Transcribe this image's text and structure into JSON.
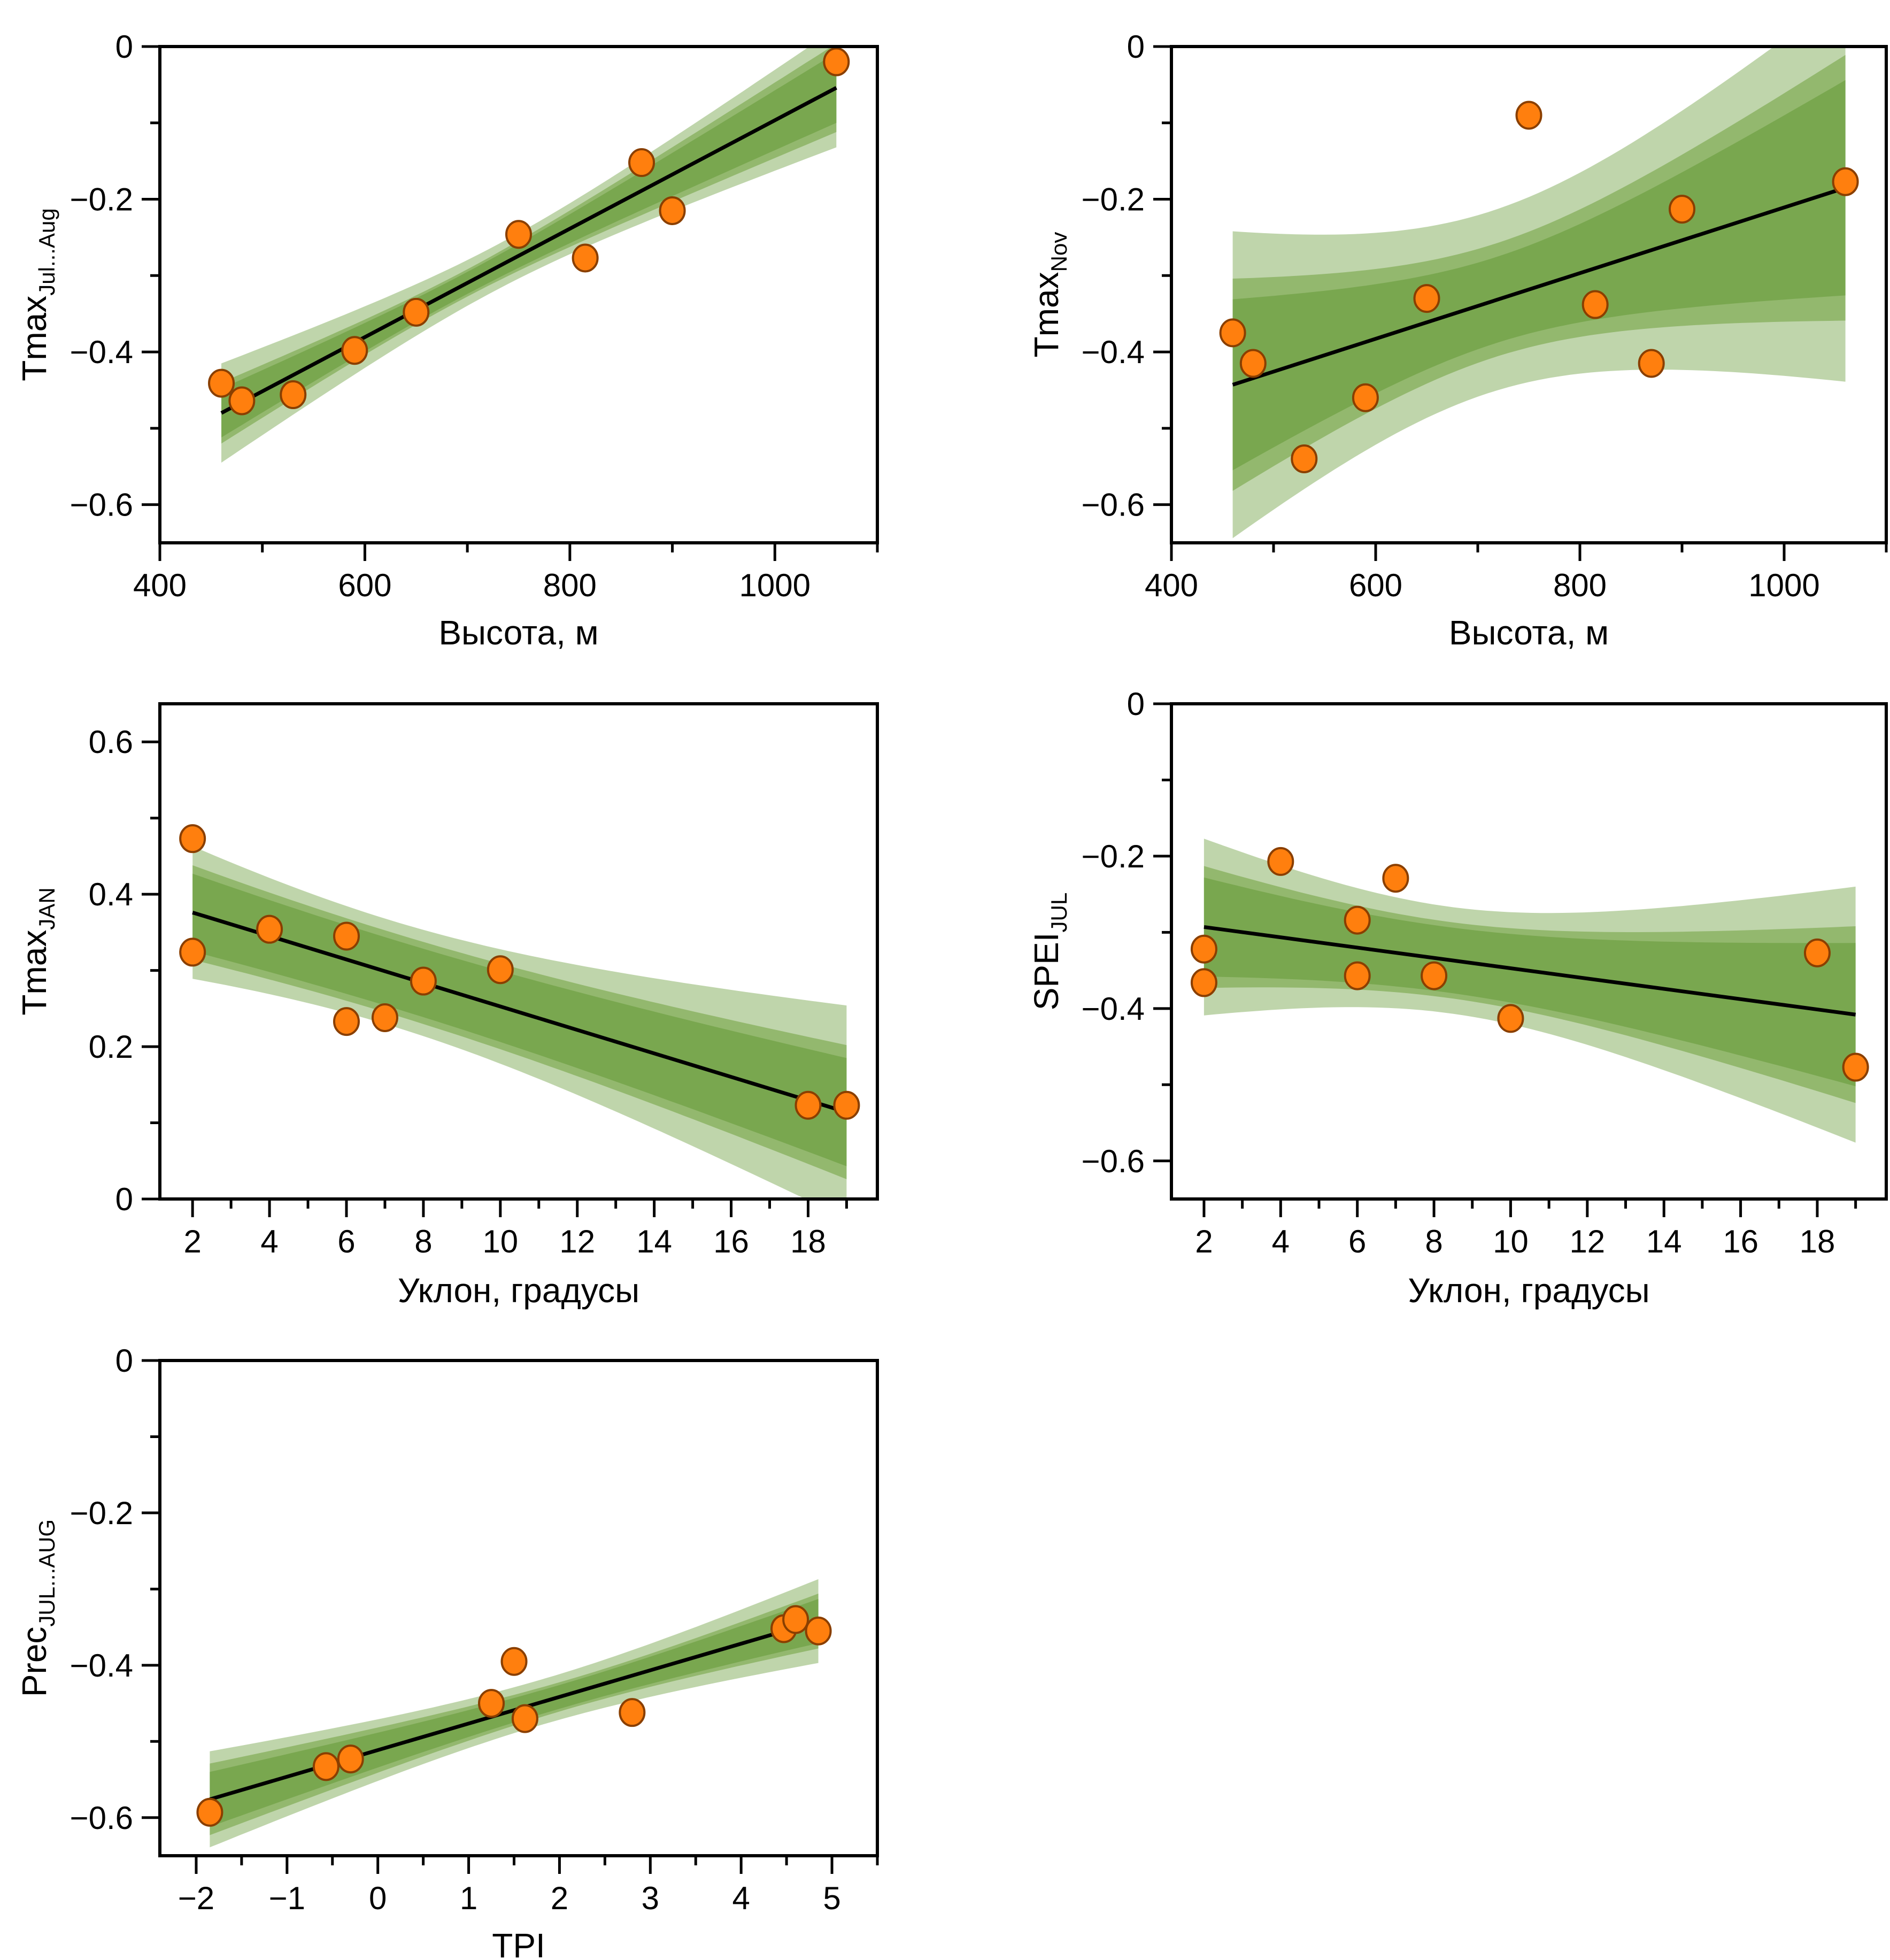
{
  "colors": {
    "band_outer": "#bfd5ab",
    "band_mid": "#93b86e",
    "band_inner": "#79a74f",
    "point_fill": "#ff7f0e",
    "point_edge": "#8a3f00",
    "line": "#000000"
  },
  "chart_data": [
    {
      "id": "p1",
      "type": "scatter",
      "title": "",
      "ylabel_main": "Tmax",
      "ylabel_sub": "Jul...Aug",
      "xlabel": "Высота, м",
      "xlim": [
        400,
        1100
      ],
      "ylim": [
        -0.65,
        0
      ],
      "xticks_major": [
        400,
        600,
        800,
        1000
      ],
      "xticks_minor": [
        500,
        700,
        900,
        1100
      ],
      "xtick_labels": [
        "400",
        "600",
        "800",
        "1000"
      ],
      "yticks_major": [
        0,
        -0.2,
        -0.4,
        -0.6
      ],
      "yticks_minor": [
        -0.1,
        -0.3,
        -0.5
      ],
      "ytick_labels": [
        "0",
        "−0.2",
        "−0.4",
        "−0.6"
      ],
      "points": {
        "x": [
          460,
          480,
          530,
          590,
          650,
          750,
          815,
          870,
          900,
          1060
        ],
        "y": [
          -0.441,
          -0.464,
          -0.456,
          -0.398,
          -0.348,
          -0.246,
          -0.277,
          -0.152,
          -0.215,
          -0.02
        ]
      },
      "fit": {
        "x": [
          460,
          1060
        ],
        "y": [
          -0.48,
          -0.054
        ]
      },
      "band_half_widths": {
        "x": [
          460,
          755,
          1060
        ],
        "outer": [
          0.065,
          0.03,
          0.078
        ],
        "mid": [
          0.04,
          0.02,
          0.058
        ],
        "inner": [
          0.032,
          0.016,
          0.046
        ]
      },
      "grid": false
    },
    {
      "id": "p2",
      "type": "scatter",
      "title": "",
      "ylabel_main": "Tmax",
      "ylabel_sub": "Nov",
      "xlabel": "Высота, м",
      "xlim": [
        400,
        1100
      ],
      "ylim": [
        -0.65,
        0
      ],
      "xticks_major": [
        400,
        600,
        800,
        1000
      ],
      "xticks_minor": [
        500,
        700,
        900,
        1100
      ],
      "xtick_labels": [
        "400",
        "600",
        "800",
        "1000"
      ],
      "yticks_major": [
        0,
        -0.2,
        -0.4,
        -0.6
      ],
      "yticks_minor": [
        -0.1,
        -0.3,
        -0.5
      ],
      "ytick_labels": [
        "0",
        "−0.2",
        "−0.4",
        "−0.6"
      ],
      "points": {
        "x": [
          460,
          480,
          530,
          590,
          650,
          750,
          815,
          870,
          900,
          1060
        ],
        "y": [
          -0.375,
          -0.415,
          -0.54,
          -0.46,
          -0.33,
          -0.09,
          -0.338,
          -0.415,
          -0.213,
          -0.177
        ]
      },
      "fit": {
        "x": [
          460,
          1060
        ],
        "y": [
          -0.443,
          -0.185
        ]
      },
      "band_half_widths": {
        "x": [
          460,
          740,
          1060
        ],
        "outer": [
          0.201,
          0.12,
          0.254
        ],
        "mid": [
          0.139,
          0.075,
          0.174
        ],
        "inner": [
          0.112,
          0.057,
          0.141
        ]
      },
      "grid": false
    },
    {
      "id": "p3",
      "type": "scatter",
      "title": "",
      "ylabel_main": "Tmax",
      "ylabel_sub": "JAN",
      "xlabel": "Уклон, градусы",
      "xlim": [
        1.15,
        19.8
      ],
      "ylim": [
        0,
        0.65
      ],
      "xticks_major": [
        2,
        4,
        6,
        8,
        10,
        12,
        14,
        16,
        18
      ],
      "xticks_minor": [
        3,
        5,
        7,
        9,
        11,
        13,
        15,
        17,
        19
      ],
      "xtick_labels": [
        "2",
        "4",
        "6",
        "8",
        "10",
        "12",
        "14",
        "16",
        "18"
      ],
      "yticks_major": [
        0,
        0.2,
        0.4,
        0.6
      ],
      "yticks_minor": [
        0.1,
        0.3,
        0.5
      ],
      "ytick_labels": [
        "0",
        "0.2",
        "0.4",
        "0.6"
      ],
      "points": {
        "x": [
          2,
          2,
          4,
          6,
          6,
          7,
          8,
          10,
          18,
          19
        ],
        "y": [
          0.473,
          0.324,
          0.354,
          0.345,
          0.233,
          0.238,
          0.286,
          0.301,
          0.123,
          0.123
        ]
      },
      "fit": {
        "x": [
          2,
          19
        ],
        "y": [
          0.376,
          0.114
        ]
      },
      "band_half_widths": {
        "x": [
          2,
          8.2,
          19
        ],
        "outer": [
          0.087,
          0.07,
          0.14
        ],
        "mid": [
          0.062,
          0.054,
          0.088
        ],
        "inner": [
          0.051,
          0.045,
          0.071
        ]
      },
      "grid": false
    },
    {
      "id": "p4",
      "type": "scatter",
      "title": "",
      "ylabel_main": "SPEI",
      "ylabel_sub": "JUL",
      "xlabel": "Уклон, градусы",
      "xlim": [
        1.15,
        19.8
      ],
      "ylim": [
        -0.65,
        0
      ],
      "xticks_major": [
        2,
        4,
        6,
        8,
        10,
        12,
        14,
        16,
        18
      ],
      "xticks_minor": [
        3,
        5,
        7,
        9,
        11,
        13,
        15,
        17,
        19
      ],
      "xtick_labels": [
        "2",
        "4",
        "6",
        "8",
        "10",
        "12",
        "14",
        "16",
        "18"
      ],
      "yticks_major": [
        0,
        -0.2,
        -0.4,
        -0.6
      ],
      "yticks_minor": [
        -0.1,
        -0.3,
        -0.5
      ],
      "ytick_labels": [
        "0",
        "−0.2",
        "−0.4",
        "−0.6"
      ],
      "points": {
        "x": [
          2,
          2,
          4,
          6,
          6,
          7,
          8,
          10,
          18,
          19
        ],
        "y": [
          -0.322,
          -0.366,
          -0.207,
          -0.284,
          -0.357,
          -0.229,
          -0.357,
          -0.413,
          -0.327,
          -0.477
        ]
      },
      "fit": {
        "x": [
          2,
          19
        ],
        "y": [
          -0.293,
          -0.408
        ]
      },
      "band_half_widths": {
        "x": [
          2,
          8.2,
          19
        ],
        "outer": [
          0.116,
          0.07,
          0.168
        ],
        "mid": [
          0.08,
          0.05,
          0.116
        ],
        "inner": [
          0.065,
          0.043,
          0.094
        ]
      },
      "grid": false
    },
    {
      "id": "p5",
      "type": "scatter",
      "title": "",
      "ylabel_main": "Prec",
      "ylabel_sub": "JUL...AUG",
      "xlabel": "TPI",
      "xlim": [
        -2.4,
        5.5
      ],
      "ylim": [
        -0.65,
        0
      ],
      "xticks_major": [
        -2,
        -1,
        0,
        1,
        2,
        3,
        4,
        5
      ],
      "xticks_minor": [
        -2.5,
        -1.5,
        -0.5,
        0.5,
        1.5,
        2.5,
        3.5,
        4.5,
        5.5
      ],
      "xtick_labels": [
        "−2",
        "−1",
        "0",
        "1",
        "2",
        "3",
        "4",
        "5"
      ],
      "yticks_major": [
        0,
        -0.2,
        -0.4,
        -0.6
      ],
      "yticks_minor": [
        -0.1,
        -0.3,
        -0.5
      ],
      "ytick_labels": [
        "0",
        "−0.2",
        "−0.4",
        "−0.6"
      ],
      "points": {
        "x": [
          -1.85,
          -0.57,
          -0.3,
          1.25,
          1.5,
          1.62,
          2.8,
          4.47,
          4.6,
          4.85
        ],
        "y": [
          -0.593,
          -0.533,
          -0.523,
          -0.45,
          -0.395,
          -0.47,
          -0.462,
          -0.352,
          -0.34,
          -0.355
        ]
      },
      "fit": {
        "x": [
          -1.85,
          4.85
        ],
        "y": [
          -0.576,
          -0.342
        ]
      },
      "band_half_widths": {
        "x": [
          -1.85,
          1.55,
          4.85
        ],
        "outer": [
          0.063,
          0.03,
          0.055
        ],
        "mid": [
          0.047,
          0.02,
          0.036
        ],
        "inner": [
          0.036,
          0.016,
          0.029
        ]
      },
      "grid": false
    }
  ]
}
